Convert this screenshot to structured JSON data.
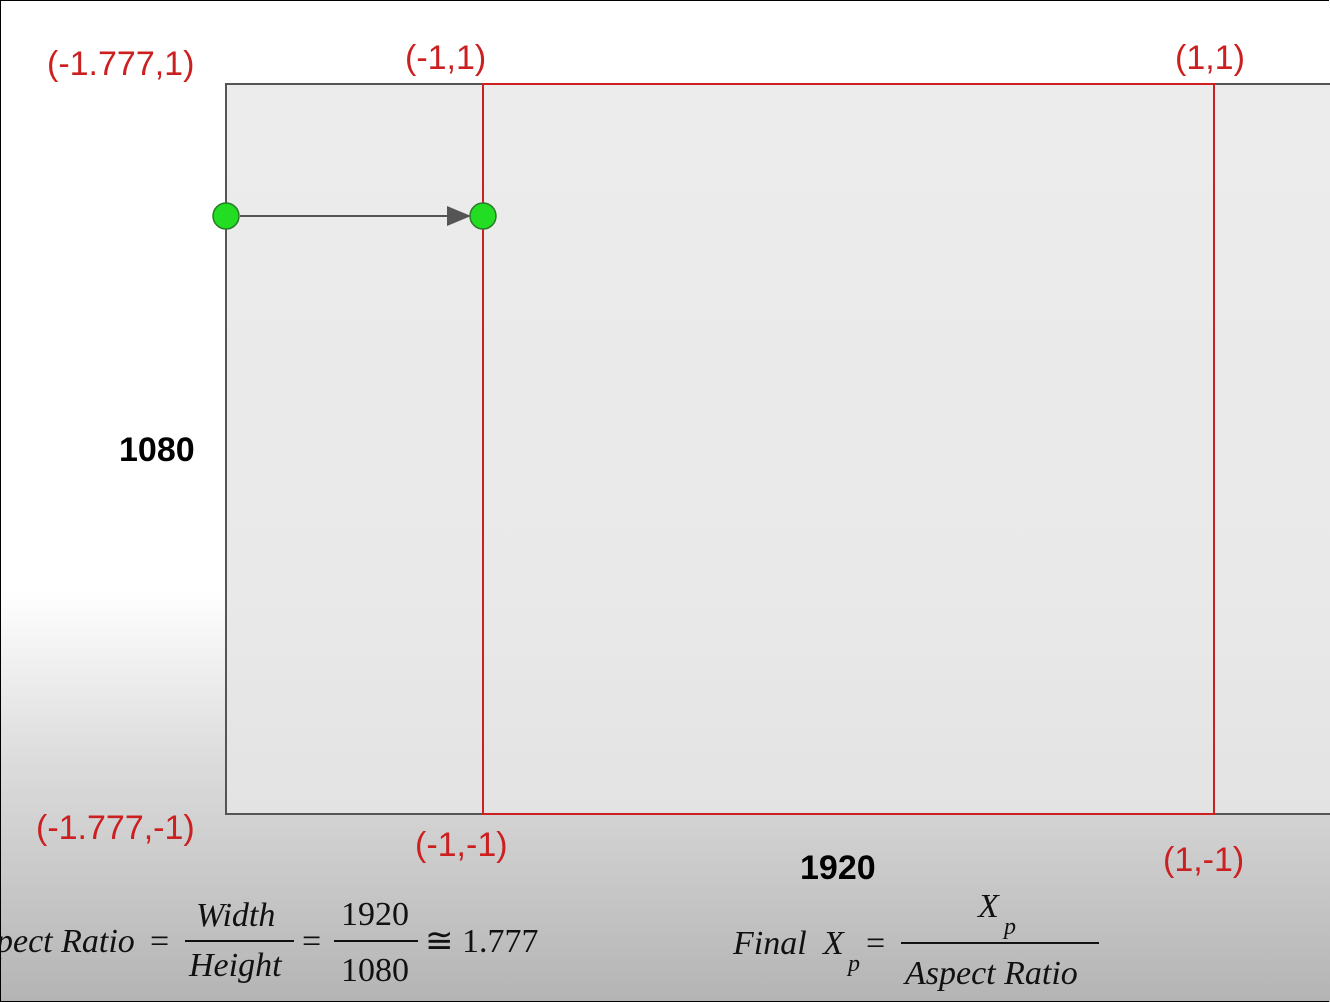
{
  "labels": {
    "outer_top_left": "(-1.777,1)",
    "outer_bottom_left": "(-1.777,-1)",
    "inner_top_left": "(-1,1)",
    "inner_top_right": "(1,1)",
    "inner_bottom_left": "(-1,-1)",
    "inner_bottom_right": "(1,-1)",
    "height": "1080",
    "width": "1920"
  },
  "formula_aspect": {
    "lhs": "Aspect Ratio",
    "eq": "=",
    "frac1_num": "Width",
    "frac1_den": "Height",
    "frac2_num": "1920",
    "frac2_den": "1080",
    "approx": "≅",
    "result": "1.777"
  },
  "formula_final": {
    "lhs_word": "Final",
    "lhs_var": "X",
    "lhs_sub": "p",
    "eq": "=",
    "num_var": "X",
    "num_sub": "p",
    "den": "Aspect Ratio"
  },
  "colors": {
    "red": "#cc1f1f",
    "green_point": "#22dd22",
    "gray_border": "#555555",
    "fill": "#ececec"
  }
}
